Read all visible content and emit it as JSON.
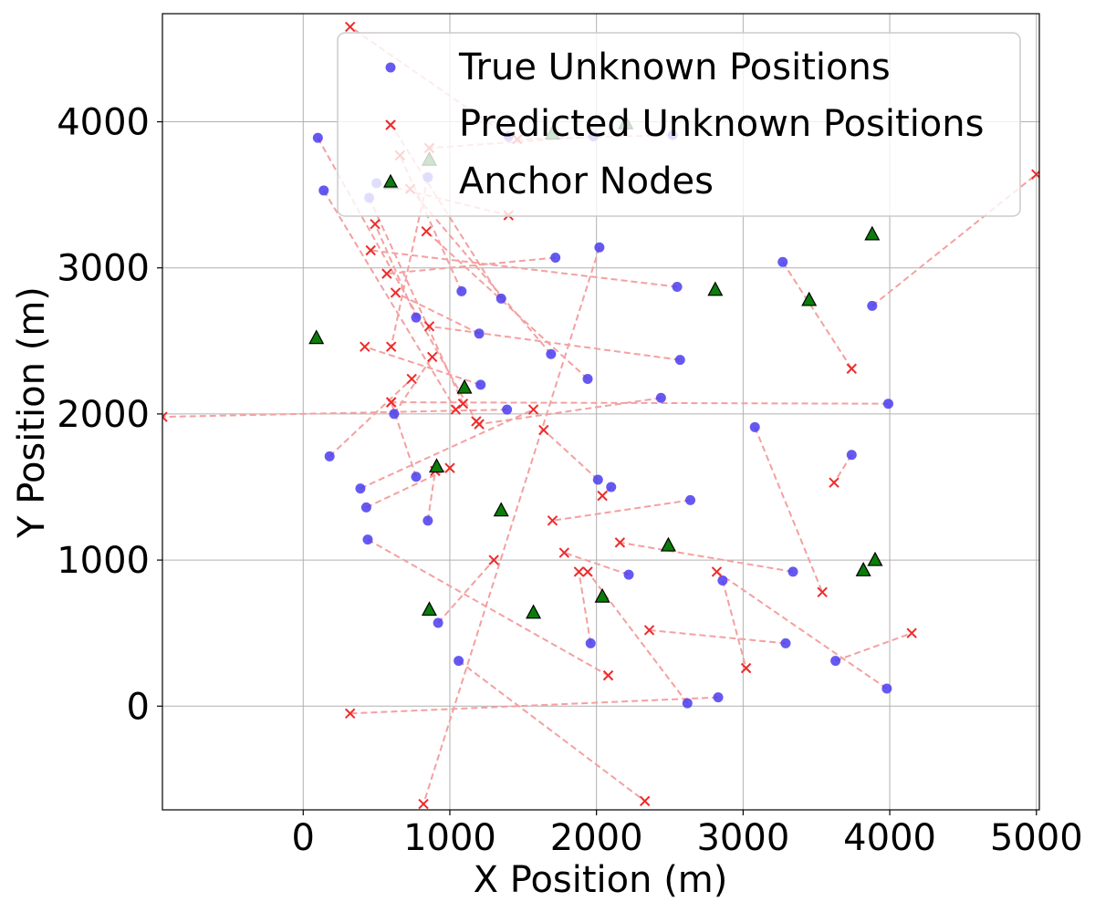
{
  "chart_data": {
    "type": "scatter",
    "title": "",
    "xlabel": "X Position (m)",
    "ylabel": "Y Position (m)",
    "xlim": [
      -960,
      5020
    ],
    "ylim": [
      -710,
      4740
    ],
    "xticks": [
      0,
      1000,
      2000,
      3000,
      4000,
      5000
    ],
    "yticks": [
      0,
      1000,
      2000,
      3000,
      4000
    ],
    "grid": true,
    "legend_position": "top-right",
    "colors": {
      "true": "#4a3cf0",
      "predicted": "#ee2b2b",
      "error_line": "#f4a0a0",
      "anchor_fill": "#0a7d0a",
      "anchor_edge": "#000000",
      "grid": "#b0b0b0"
    },
    "legend": [
      {
        "key": "true",
        "label": "True Unknown Positions"
      },
      {
        "key": "predicted",
        "label": "Predicted Unknown Positions"
      },
      {
        "key": "anchor",
        "label": "Anchor Nodes"
      }
    ],
    "anchors": [
      [
        600,
        3580
      ],
      [
        860,
        3740
      ],
      [
        1700,
        3920
      ],
      [
        2200,
        3990
      ],
      [
        3880,
        3230
      ],
      [
        2810,
        2850
      ],
      [
        3450,
        2780
      ],
      [
        90,
        2520
      ],
      [
        1100,
        2180
      ],
      [
        910,
        1640
      ],
      [
        1350,
        1340
      ],
      [
        2490,
        1100
      ],
      [
        3900,
        1000
      ],
      [
        3820,
        930
      ],
      [
        860,
        660
      ],
      [
        1570,
        640
      ],
      [
        2040,
        750
      ]
    ],
    "unknowns": [
      {
        "true": [
          100,
          3890
        ],
        "pred": [
          1180,
          1950
        ]
      },
      {
        "true": [
          140,
          3530
        ],
        "pred": [
          1040,
          2030
        ]
      },
      {
        "true": [
          450,
          3480
        ],
        "pred": [
          1090,
          2070
        ]
      },
      {
        "true": [
          500,
          3580
        ],
        "pred": [
          1400,
          3360
        ]
      },
      {
        "true": [
          850,
          3620
        ],
        "pred": [
          600,
          2460
        ]
      },
      {
        "true": [
          1400,
          3900
        ],
        "pred": [
          320,
          4650
        ]
      },
      {
        "true": [
          2520,
          3910
        ],
        "pred": [
          1460,
          3880
        ]
      },
      {
        "true": [
          1980,
          3900
        ],
        "pred": [
          860,
          3820
        ]
      },
      {
        "true": [
          2020,
          3140
        ],
        "pred": [
          820,
          -670
        ]
      },
      {
        "true": [
          1720,
          3070
        ],
        "pred": [
          570,
          2960
        ]
      },
      {
        "true": [
          2550,
          2870
        ],
        "pred": [
          460,
          3120
        ]
      },
      {
        "true": [
          3270,
          3040
        ],
        "pred": [
          3740,
          2310
        ]
      },
      {
        "true": [
          3880,
          2740
        ],
        "pred": [
          5000,
          3640
        ]
      },
      {
        "true": [
          1080,
          2840
        ],
        "pred": [
          660,
          3770
        ]
      },
      {
        "true": [
          1350,
          2790
        ],
        "pred": [
          600,
          3980
        ]
      },
      {
        "true": [
          770,
          2660
        ],
        "pred": [
          490,
          3300
        ]
      },
      {
        "true": [
          1200,
          2550
        ],
        "pred": [
          630,
          2830
        ]
      },
      {
        "true": [
          1690,
          2410
        ],
        "pred": [
          730,
          3540
        ]
      },
      {
        "true": [
          1940,
          2240
        ],
        "pred": [
          840,
          3250
        ]
      },
      {
        "true": [
          2570,
          2370
        ],
        "pred": [
          860,
          2600
        ]
      },
      {
        "true": [
          1210,
          2200
        ],
        "pred": [
          420,
          2460
        ]
      },
      {
        "true": [
          2440,
          2110
        ],
        "pred": [
          1200,
          1930
        ]
      },
      {
        "true": [
          1390,
          2030
        ],
        "pred": [
          -960,
          1980
        ]
      },
      {
        "true": [
          620,
          2000
        ],
        "pred": [
          880,
          2390
        ]
      },
      {
        "true": [
          3080,
          1910
        ],
        "pred": [
          3540,
          780
        ]
      },
      {
        "true": [
          3740,
          1720
        ],
        "pred": [
          3620,
          1530
        ]
      },
      {
        "true": [
          3990,
          2070
        ],
        "pred": [
          600,
          2080
        ]
      },
      {
        "true": [
          180,
          1710
        ],
        "pred": [
          740,
          2240
        ]
      },
      {
        "true": [
          390,
          1490
        ],
        "pred": [
          1570,
          2030
        ]
      },
      {
        "true": [
          770,
          1570
        ],
        "pred": [
          600,
          2080
        ]
      },
      {
        "true": [
          430,
          1360
        ],
        "pred": [
          1000,
          1630
        ]
      },
      {
        "true": [
          2010,
          1550
        ],
        "pred": [
          1640,
          1890
        ]
      },
      {
        "true": [
          2100,
          1500
        ],
        "pred": [
          2040,
          1440
        ]
      },
      {
        "true": [
          2640,
          1410
        ],
        "pred": [
          1700,
          1270
        ]
      },
      {
        "true": [
          850,
          1270
        ],
        "pred": [
          900,
          1610
        ]
      },
      {
        "true": [
          440,
          1140
        ],
        "pred": [
          2080,
          210
        ]
      },
      {
        "true": [
          3340,
          920
        ],
        "pred": [
          2160,
          1120
        ]
      },
      {
        "true": [
          2220,
          900
        ],
        "pred": [
          1780,
          1050
        ]
      },
      {
        "true": [
          2860,
          860
        ],
        "pred": [
          3020,
          260
        ]
      },
      {
        "true": [
          920,
          570
        ],
        "pred": [
          1300,
          1000
        ]
      },
      {
        "true": [
          1960,
          430
        ],
        "pred": [
          1880,
          920
        ]
      },
      {
        "true": [
          1060,
          310
        ],
        "pred": [
          2330,
          -650
        ]
      },
      {
        "true": [
          3290,
          430
        ],
        "pred": [
          2360,
          520
        ]
      },
      {
        "true": [
          3630,
          310
        ],
        "pred": [
          4150,
          500
        ]
      },
      {
        "true": [
          3980,
          120
        ],
        "pred": [
          2820,
          920
        ]
      },
      {
        "true": [
          2620,
          20
        ],
        "pred": [
          1940,
          920
        ]
      },
      {
        "true": [
          2830,
          60
        ],
        "pred": [
          320,
          -50
        ]
      }
    ]
  }
}
